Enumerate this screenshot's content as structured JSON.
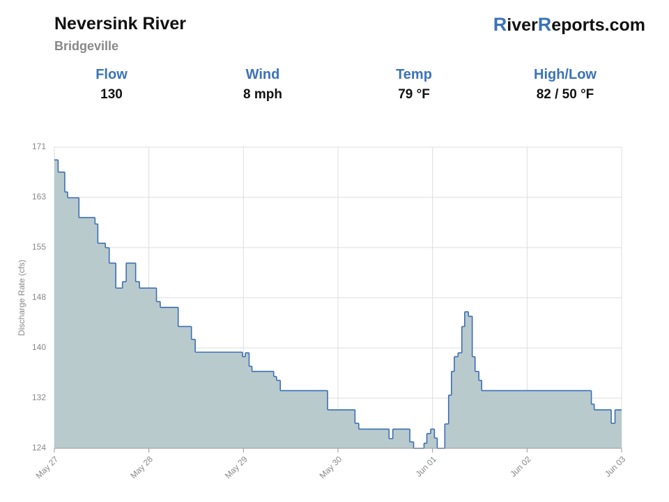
{
  "header": {
    "title": "Neversink River",
    "subtitle": "Bridgeville",
    "logo": [
      "R",
      "iver",
      "R",
      "eports.com"
    ],
    "stats": [
      {
        "label": "Flow",
        "value": "130"
      },
      {
        "label": "Wind",
        "value": "8 mph"
      },
      {
        "label": "Temp",
        "value": "79 °F"
      },
      {
        "label": "High/Low",
        "value": "82 / 50 °F"
      }
    ]
  },
  "chart_data": {
    "type": "step",
    "y_label": "Discharge Rate (cfs)",
    "line_color": "#3a6fb5",
    "fill_color": "#b9cacd",
    "grid": true,
    "x": [
      0,
      0.04,
      0.11,
      0.14,
      0.26,
      0.43,
      0.46,
      0.54,
      0.58,
      0.65,
      0.72,
      0.76,
      0.86,
      0.9,
      1.08,
      1.12,
      1.31,
      1.45,
      1.49,
      1.99,
      2.02,
      2.06,
      2.09,
      2.32,
      2.35,
      2.39,
      2.89,
      3.18,
      3.22,
      3.54,
      3.58,
      3.76,
      3.8,
      3.91,
      3.94,
      3.98,
      4.02,
      4.05,
      4.13,
      4.17,
      4.2,
      4.23,
      4.27,
      4.31,
      4.34,
      4.38,
      4.42,
      4.45,
      4.49,
      4.52,
      5.68,
      5.71,
      5.89,
      5.93,
      6
    ],
    "values": [
      169,
      167.1,
      164,
      163.1,
      160,
      159,
      156,
      155.3,
      152.9,
      149,
      150,
      152.9,
      150,
      149,
      146.9,
      146,
      143,
      141,
      139,
      138.3,
      138.9,
      136.8,
      136,
      135.2,
      134.6,
      133,
      130,
      127.9,
      127,
      125.5,
      127,
      125,
      124,
      124.8,
      126.3,
      127,
      125.6,
      124,
      127.8,
      132.3,
      136,
      138.3,
      138.9,
      143,
      145.3,
      144.6,
      138.3,
      136,
      134.6,
      133,
      130.9,
      130,
      127.9,
      130,
      130
    ],
    "xlim": [
      0,
      6
    ],
    "xticks": [
      {
        "value": 0,
        "label": "May 27"
      },
      {
        "value": 1,
        "label": "May 28"
      },
      {
        "value": 2,
        "label": "May 29"
      },
      {
        "value": 3,
        "label": "May 30"
      },
      {
        "value": 4,
        "label": "Jun 01"
      },
      {
        "value": 5,
        "label": "Jun 02"
      },
      {
        "value": 6,
        "label": "Jun 03"
      }
    ],
    "ylim": [
      124,
      171
    ],
    "yticks": [
      124,
      {
        "value": 131.83,
        "label": "132"
      },
      {
        "value": 139.67,
        "label": "140"
      },
      {
        "value": 147.5,
        "label": "148"
      },
      {
        "value": 155.33,
        "label": "155"
      },
      {
        "value": 163.17,
        "label": "163"
      },
      171
    ]
  }
}
